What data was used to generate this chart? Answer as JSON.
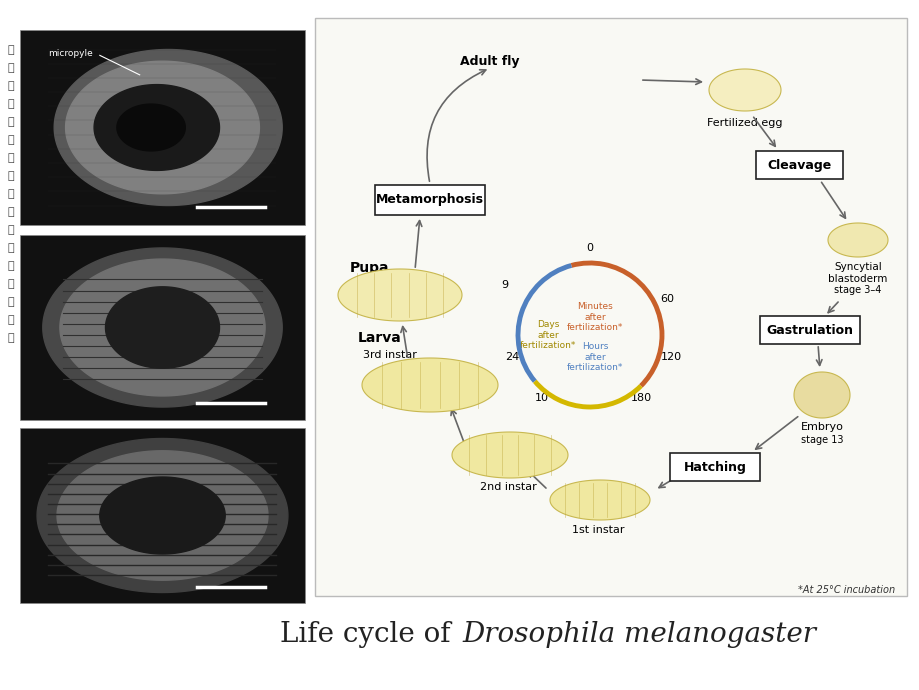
{
  "bg_color": "#ffffff",
  "title_normal": "Life cycle of ",
  "title_italic": "Drosophila melanogaster",
  "title_fontsize": 20,
  "chinese_text": "发育生物学第十章果蝇的胚轴形成课件",
  "left_panel_bg": "#111111",
  "scale_bar_color": "#ffffff",
  "diagram_bg": "#f9f9f4",
  "box_border": "#222222",
  "arrow_color": "#555555",
  "cycle_yellow": "#d4b800",
  "cycle_orange": "#c8602a",
  "cycle_blue": "#5080c0",
  "stage_labels": {
    "adult_fly": "Adult fly",
    "fertilized_egg": "Fertilized egg",
    "cleavage": "Cleavage",
    "syncytial": "Syncytial\nblastoderm",
    "stage34": "stage 3–4",
    "gastrulation": "Gastrulation",
    "embryo": "Embryo",
    "stage13": "stage 13",
    "hatching": "Hatching",
    "first_instar": "1st instar",
    "second_instar": "2nd instar",
    "third_instar": "3rd instar",
    "larva": "Larva",
    "pupa": "Pupa",
    "metamorphosis": "Metamorphosis"
  },
  "time_labels": {
    "minutes": "Minutes\nafter\nfertilization*",
    "hours": "Hours\nafter\nfertilization*",
    "days": "Days\nafter\nfertilization*",
    "t0": "0",
    "t60": "60",
    "t120": "120",
    "t180": "180",
    "t10": "10",
    "t24": "24",
    "t9": "9"
  },
  "footnote": "*At 25°C incubation"
}
